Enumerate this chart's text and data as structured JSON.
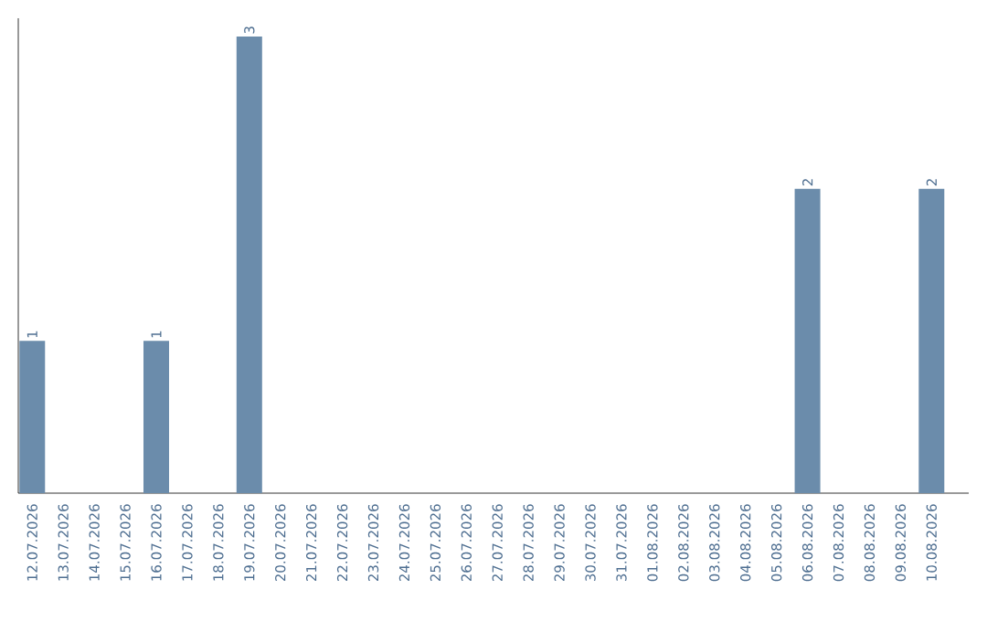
{
  "chart_data": {
    "type": "bar",
    "categories": [
      "12.07.2026",
      "13.07.2026",
      "14.07.2026",
      "15.07.2026",
      "16.07.2026",
      "17.07.2026",
      "18.07.2026",
      "19.07.2026",
      "20.07.2026",
      "21.07.2026",
      "22.07.2026",
      "23.07.2026",
      "24.07.2026",
      "25.07.2026",
      "26.07.2026",
      "27.07.2026",
      "28.07.2026",
      "29.07.2026",
      "30.07.2026",
      "31.07.2026",
      "01.08.2026",
      "02.08.2026",
      "03.08.2026",
      "04.08.2026",
      "05.08.2026",
      "06.08.2026",
      "07.08.2026",
      "08.08.2026",
      "09.08.2026",
      "10.08.2026"
    ],
    "values": [
      1,
      0,
      0,
      0,
      1,
      0,
      0,
      3,
      0,
      0,
      0,
      0,
      0,
      0,
      0,
      0,
      0,
      0,
      0,
      0,
      0,
      0,
      0,
      0,
      0,
      2,
      0,
      0,
      0,
      2
    ],
    "value_labels": [
      "1",
      null,
      null,
      null,
      "1",
      null,
      null,
      "3",
      null,
      null,
      null,
      null,
      null,
      null,
      null,
      null,
      null,
      null,
      null,
      null,
      null,
      null,
      null,
      null,
      null,
      "2",
      null,
      null,
      null,
      "2"
    ],
    "color": "#6b8cab",
    "tick_labels": "x"
  }
}
